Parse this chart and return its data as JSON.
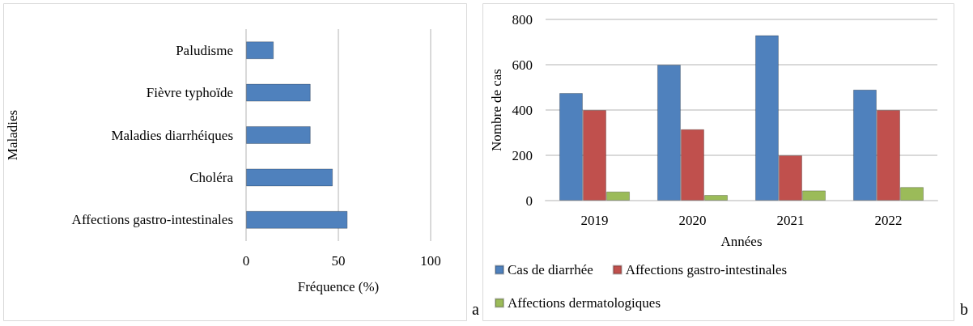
{
  "chart_data": [
    {
      "type": "bar",
      "orientation": "horizontal",
      "ylabel": "Maladies",
      "xlabel": "Fréquence (%)",
      "categories": [
        "Paludisme",
        "Fièvre typhoïde",
        "Maladies diarrhéiques",
        "Choléra",
        "Affections gastro-intestinales"
      ],
      "values": [
        15,
        35,
        35,
        47,
        55
      ],
      "color": "#4f81bd",
      "xlim": [
        0,
        100
      ],
      "xticks": [
        0,
        50,
        100
      ],
      "grid": "x",
      "legend": false,
      "annotations": [
        "a"
      ]
    },
    {
      "type": "bar",
      "ylabel": "Nombre de cas",
      "xlabel": "Années",
      "categories": [
        "2019",
        "2020",
        "2021",
        "2022"
      ],
      "series": [
        {
          "name": "Cas de diarrhée",
          "color": "#4f81bd",
          "values": [
            475,
            600,
            730,
            490
          ]
        },
        {
          "name": "Affections gastro-intestinales",
          "color": "#c0504d",
          "values": [
            400,
            315,
            200,
            400
          ]
        },
        {
          "name": "Affections dermatologiques",
          "color": "#9bbb59",
          "values": [
            40,
            25,
            45,
            60
          ]
        }
      ],
      "ylim": [
        0,
        800
      ],
      "yticks": [
        0,
        200,
        400,
        600,
        800
      ],
      "grid": "y",
      "legend": "bottom",
      "annotations": [
        "b"
      ]
    }
  ]
}
